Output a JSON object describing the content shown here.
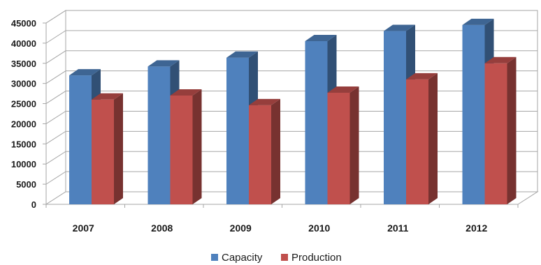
{
  "chart_data": {
    "type": "bar",
    "categories": [
      "2007",
      "2008",
      "2009",
      "2010",
      "2011",
      "2012"
    ],
    "series": [
      {
        "name": "Capacity",
        "values": [
          32000,
          34200,
          36400,
          40500,
          43000,
          44500
        ],
        "color": "#4F81BD"
      },
      {
        "name": "Production",
        "values": [
          26000,
          27000,
          24600,
          27700,
          31000,
          35000
        ],
        "color": "#C0504D"
      }
    ],
    "y_ticks": [
      "0",
      "5000",
      "10000",
      "15000",
      "20000",
      "25000",
      "30000",
      "35000",
      "40000",
      "45000"
    ],
    "ylim": [
      0,
      45000
    ],
    "grid": true,
    "legend": "bottom",
    "title": "",
    "xlabel": "",
    "ylabel": ""
  }
}
